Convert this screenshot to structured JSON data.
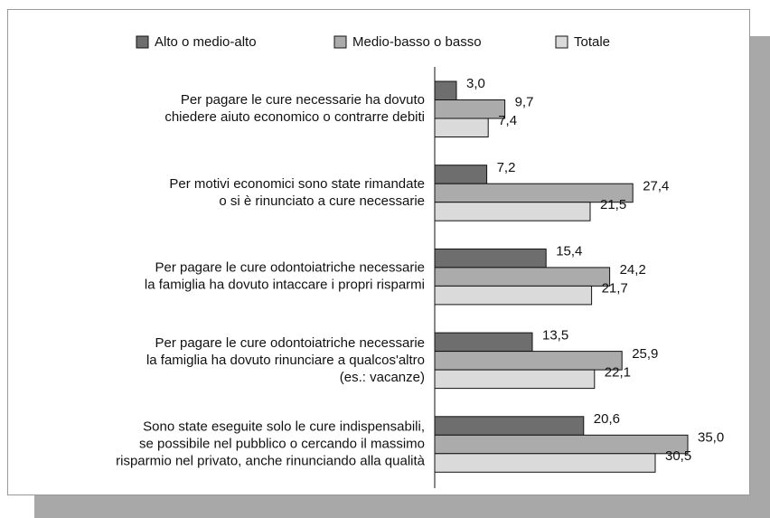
{
  "chart_data": {
    "type": "bar",
    "orientation": "horizontal",
    "categories": [
      [
        "Per pagare le cure necessarie ha dovuto",
        "chiedere aiuto economico o contrarre debiti"
      ],
      [
        "Per motivi economici sono state rimandate",
        "o si è rinunciato a cure necessarie"
      ],
      [
        "Per pagare le cure odontoiatriche necessarie",
        "la famiglia ha dovuto intaccare i propri risparmi"
      ],
      [
        "Per pagare le cure odontoiatriche necessarie",
        "la famiglia ha dovuto rinunciare a qualcos'altro",
        "(es.: vacanze)"
      ],
      [
        "Sono state eseguite solo le cure indispensabili,",
        "se possibile nel pubblico o cercando il massimo",
        "risparmio nel privato, anche rinunciando alla qualità"
      ]
    ],
    "series": [
      {
        "name": "Alto o medio-alto",
        "color": "#6e6e6e",
        "values": [
          3.0,
          7.2,
          15.4,
          13.5,
          20.6
        ],
        "value_labels": [
          "3,0",
          "7,2",
          "15,4",
          "13,5",
          "20,6"
        ]
      },
      {
        "name": "Medio-basso o basso",
        "color": "#ababab",
        "values": [
          9.7,
          27.4,
          24.2,
          25.9,
          35.0
        ],
        "value_labels": [
          "9,7",
          "27,4",
          "24,2",
          "25,9",
          "35,0"
        ]
      },
      {
        "name": "Totale",
        "color": "#dadada",
        "values": [
          7.4,
          21.5,
          21.7,
          22.1,
          30.5
        ],
        "value_labels": [
          "7,4",
          "21,5",
          "21,7",
          "22,1",
          "30,5"
        ]
      }
    ],
    "xlim": [
      0,
      40
    ],
    "legend": "top"
  }
}
